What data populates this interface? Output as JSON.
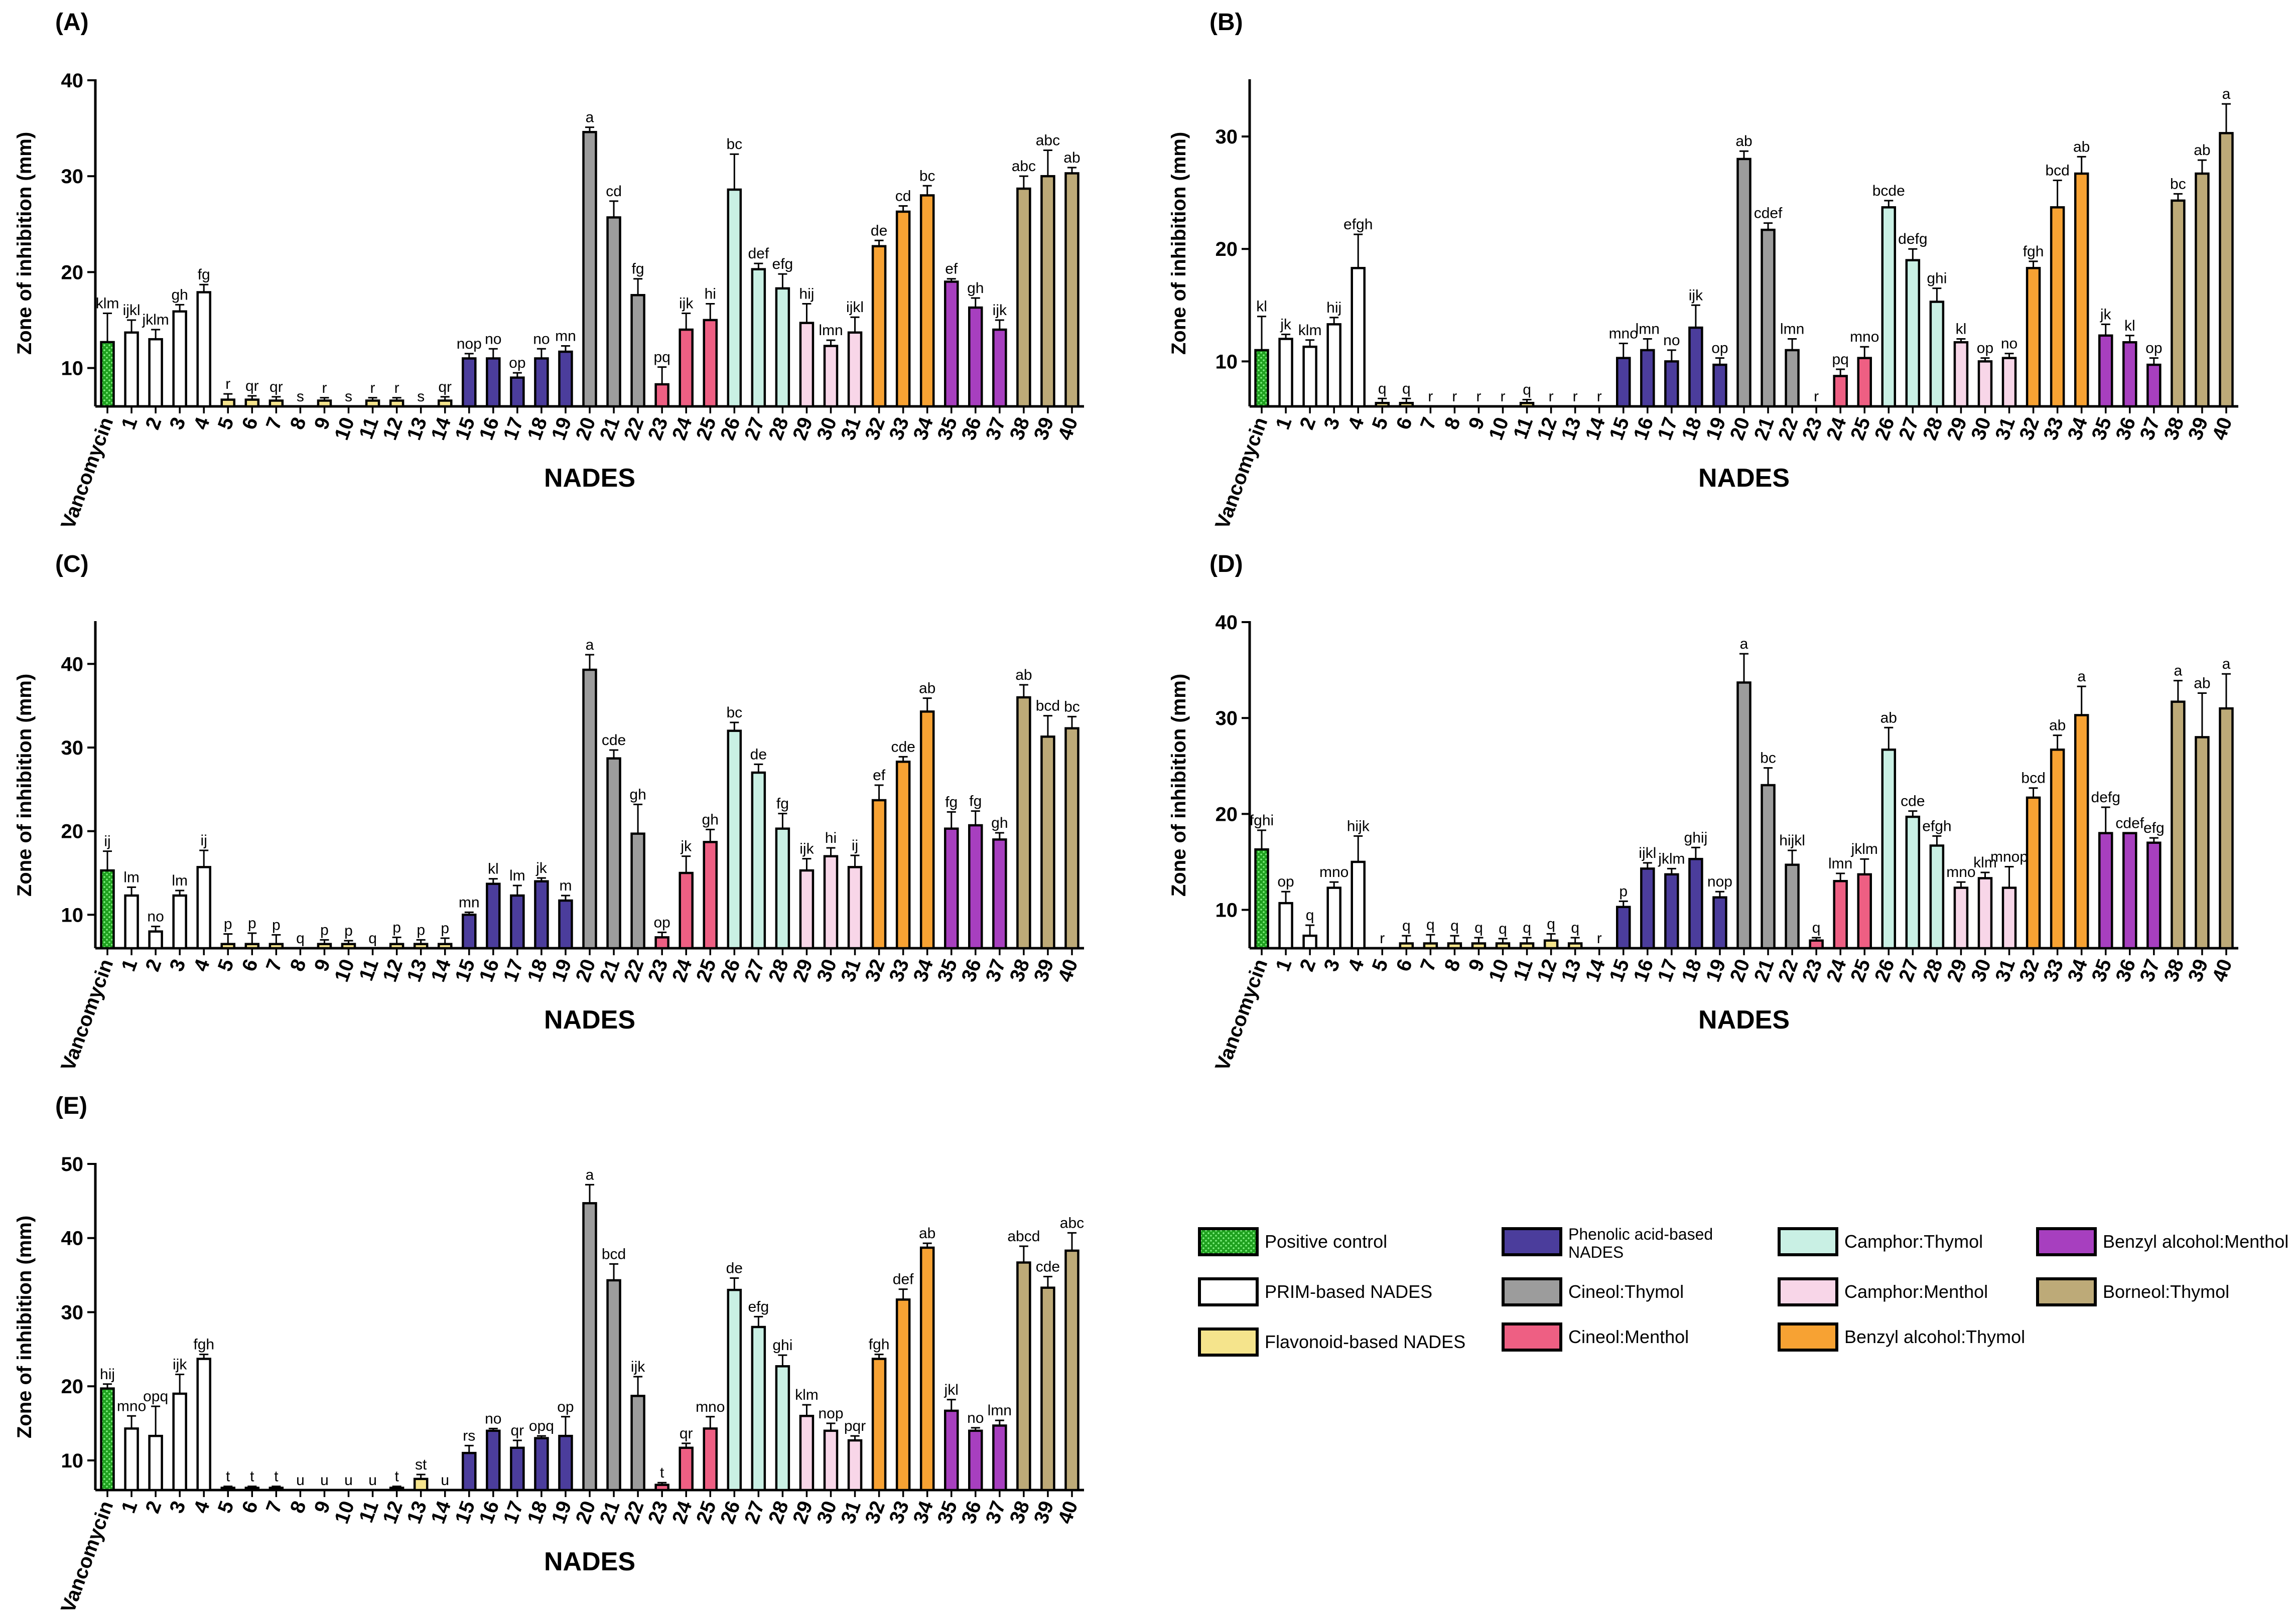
{
  "colors": {
    "positive_control": "#1fa01f",
    "prim": "#ffffff",
    "flavonoid": "#f5e48c",
    "phenolic": "#4b3d9c",
    "cineol_thymol": "#9c9c9c",
    "cineol_menthol": "#ee5f83",
    "camphor_thymol": "#c9f0e4",
    "camphor_menthol": "#f8d6e8",
    "benzyl_thymol": "#f7a233",
    "benzyl_menthol": "#a73fbf",
    "borneol_thymol": "#bdaa78"
  },
  "categories": [
    "Vancomycin",
    "1",
    "2",
    "3",
    "4",
    "5",
    "6",
    "7",
    "8",
    "9",
    "10",
    "11",
    "12",
    "13",
    "14",
    "15",
    "16",
    "17",
    "18",
    "19",
    "20",
    "21",
    "22",
    "23",
    "24",
    "25",
    "26",
    "27",
    "28",
    "29",
    "30",
    "31",
    "32",
    "33",
    "34",
    "35",
    "36",
    "37",
    "38",
    "39",
    "40"
  ],
  "bar_groups": [
    "positive_control",
    "prim",
    "prim",
    "prim",
    "prim",
    "flavonoid",
    "flavonoid",
    "flavonoid",
    "flavonoid",
    "flavonoid",
    "flavonoid",
    "flavonoid",
    "flavonoid",
    "flavonoid",
    "flavonoid",
    "phenolic",
    "phenolic",
    "phenolic",
    "phenolic",
    "phenolic",
    "cineol_thymol",
    "cineol_thymol",
    "cineol_thymol",
    "cineol_menthol",
    "cineol_menthol",
    "cineol_menthol",
    "camphor_thymol",
    "camphor_thymol",
    "camphor_thymol",
    "camphor_menthol",
    "camphor_menthol",
    "camphor_menthol",
    "benzyl_thymol",
    "benzyl_thymol",
    "benzyl_thymol",
    "benzyl_menthol",
    "benzyl_menthol",
    "benzyl_menthol",
    "borneol_thymol",
    "borneol_thymol",
    "borneol_thymol"
  ],
  "chart_data": [
    {
      "panel": "(A)",
      "type": "bar",
      "xlabel": "NADES",
      "ylabel": "Zone of inhibition (mm)",
      "ylim": [
        6,
        40
      ],
      "yticks": [
        10,
        20,
        30,
        40
      ],
      "values": [
        12.7,
        13.7,
        13.0,
        15.9,
        17.9,
        6.7,
        6.7,
        6.6,
        6,
        6.6,
        6,
        6.6,
        6.6,
        6,
        6.6,
        11.0,
        11.0,
        9.0,
        11.0,
        11.7,
        34.6,
        25.7,
        17.6,
        8.3,
        14.0,
        15.0,
        28.6,
        20.3,
        18.3,
        14.7,
        12.3,
        13.7,
        22.7,
        26.3,
        28.0,
        19.0,
        16.3,
        14.0,
        28.7,
        30.0,
        30.3
      ],
      "errors": [
        3.0,
        1.3,
        1.0,
        0.7,
        0.8,
        0.6,
        0.4,
        0.4,
        0,
        0.3,
        0,
        0.3,
        0.3,
        0,
        0.4,
        0.5,
        1.0,
        0.5,
        1.0,
        0.6,
        0.5,
        1.7,
        1.7,
        1.8,
        1.7,
        1.7,
        3.7,
        0.6,
        1.5,
        2.0,
        0.6,
        1.6,
        0.6,
        0.6,
        1.0,
        0.3,
        1.0,
        1.0,
        1.3,
        2.7,
        0.6
      ],
      "letters": [
        "klm",
        "ijkl",
        "jklm",
        "gh",
        "fg",
        "r",
        "qr",
        "qr",
        "s",
        "r",
        "s",
        "r",
        "r",
        "s",
        "qr",
        "nop",
        "no",
        "op",
        "no",
        "mn",
        "a",
        "cd",
        "fg",
        "pq",
        "ijk",
        "hi",
        "bc",
        "def",
        "efg",
        "hij",
        "lmn",
        "ijkl",
        "de",
        "cd",
        "bc",
        "ef",
        "gh",
        "ijk",
        "abc",
        "abc",
        "ab"
      ]
    },
    {
      "panel": "(B)",
      "type": "bar",
      "xlabel": "NADES",
      "ylabel": "Zone of inhibition (mm)",
      "ylim": [
        6,
        35
      ],
      "yticks": [
        10,
        20,
        30
      ],
      "values": [
        11.0,
        12.0,
        11.3,
        13.3,
        18.3,
        6.3,
        6.3,
        6,
        6,
        6,
        6,
        6.3,
        6,
        6,
        6,
        10.3,
        11.0,
        10.0,
        13.0,
        9.7,
        28.0,
        21.7,
        11.0,
        6,
        8.7,
        10.3,
        23.7,
        19.0,
        15.3,
        11.7,
        10.0,
        10.3,
        18.3,
        23.7,
        26.7,
        12.3,
        11.7,
        9.7,
        24.3,
        26.7,
        30.3
      ],
      "errors": [
        3.0,
        0.4,
        0.6,
        0.6,
        3.0,
        0.4,
        0.4,
        0,
        0,
        0,
        0,
        0.3,
        0,
        0,
        0,
        1.3,
        1.0,
        1.0,
        2.0,
        0.6,
        0.7,
        0.6,
        1.0,
        0,
        0.6,
        1.0,
        0.6,
        1.0,
        1.2,
        0.3,
        0.3,
        0.4,
        0.6,
        2.4,
        1.5,
        1.0,
        0.6,
        0.6,
        0.6,
        1.2,
        2.6
      ],
      "letters": [
        "kl",
        "jk",
        "klm",
        "hij",
        "efgh",
        "q",
        "q",
        "r",
        "r",
        "r",
        "r",
        "q",
        "r",
        "r",
        "r",
        "mno",
        "lmn",
        "no",
        "ijk",
        "op",
        "ab",
        "cdef",
        "lmn",
        "r",
        "pq",
        "mno",
        "bcde",
        "defg",
        "ghi",
        "kl",
        "op",
        "no",
        "fgh",
        "bcd",
        "ab",
        "jk",
        "kl",
        "op",
        "bc",
        "ab",
        "a"
      ]
    },
    {
      "panel": "(C)",
      "type": "bar",
      "xlabel": "NADES",
      "ylabel": "Zone of inhibition (mm)",
      "ylim": [
        6,
        45
      ],
      "yticks": [
        10,
        20,
        30,
        40
      ],
      "values": [
        15.3,
        12.3,
        8.0,
        12.3,
        15.7,
        6.5,
        6.5,
        6.5,
        6,
        6.5,
        6.5,
        6,
        6.5,
        6.5,
        6.5,
        10.0,
        13.7,
        12.3,
        14.0,
        11.7,
        39.3,
        28.7,
        19.7,
        7.3,
        15.0,
        18.7,
        32.0,
        27.0,
        20.3,
        15.3,
        17.0,
        15.7,
        23.7,
        28.3,
        34.3,
        20.3,
        20.7,
        19.0,
        36.0,
        31.3,
        32.3
      ],
      "errors": [
        2.3,
        1.0,
        0.6,
        0.6,
        2.0,
        1.2,
        1.3,
        1.1,
        0,
        0.5,
        0.4,
        0,
        0.8,
        0.5,
        0.7,
        0.3,
        0.6,
        1.2,
        0.4,
        0.6,
        1.8,
        1.0,
        3.5,
        0.6,
        2.0,
        1.5,
        1.0,
        1.0,
        1.8,
        1.4,
        1.0,
        1.4,
        1.8,
        0.6,
        1.6,
        2.0,
        1.7,
        0.8,
        1.5,
        2.5,
        1.4
      ],
      "letters": [
        "ij",
        "lm",
        "no",
        "lm",
        "ij",
        "p",
        "p",
        "p",
        "q",
        "p",
        "p",
        "q",
        "p",
        "p",
        "p",
        "mn",
        "kl",
        "lm",
        "jk",
        "m",
        "a",
        "cde",
        "gh",
        "op",
        "jk",
        "gh",
        "bc",
        "de",
        "fg",
        "ijk",
        "hi",
        "ij",
        "ef",
        "cde",
        "ab",
        "fg",
        "fg",
        "gh",
        "ab",
        "bcd",
        "bc"
      ]
    },
    {
      "panel": "(D)",
      "type": "bar",
      "xlabel": "NADES",
      "ylabel": "Zone of inhibition (mm)",
      "ylim": [
        6,
        40
      ],
      "yticks": [
        10,
        20,
        30,
        40
      ],
      "values": [
        16.3,
        10.7,
        7.3,
        12.3,
        15.0,
        6,
        6.5,
        6.5,
        6.5,
        6.5,
        6.5,
        6.5,
        6.8,
        6.5,
        6,
        10.3,
        14.3,
        13.7,
        15.3,
        11.3,
        33.7,
        23.0,
        14.7,
        6.8,
        13.0,
        13.7,
        26.7,
        19.7,
        16.7,
        12.3,
        13.3,
        12.3,
        21.7,
        26.7,
        30.3,
        18.0,
        18.0,
        17.0,
        31.7,
        28.0,
        31.0
      ],
      "errors": [
        2.0,
        1.2,
        1.1,
        0.6,
        2.7,
        0,
        0.8,
        0.9,
        0.8,
        0.6,
        0.5,
        0.6,
        0.7,
        0.6,
        0,
        0.6,
        0.6,
        0.6,
        1.2,
        0.6,
        3.0,
        1.8,
        1.5,
        0.3,
        0.8,
        1.6,
        2.3,
        0.6,
        1.0,
        0.6,
        0.6,
        2.2,
        1.0,
        1.5,
        3.0,
        2.7,
        0,
        0.5,
        2.2,
        4.6,
        3.6
      ],
      "letters": [
        "fghi",
        "op",
        "q",
        "mno",
        "hijk",
        "r",
        "q",
        "q",
        "q",
        "q",
        "q",
        "q",
        "q",
        "q",
        "r",
        "p",
        "ijkl",
        "jklm",
        "ghij",
        "nop",
        "a",
        "bc",
        "hijkl",
        "q",
        "lmn",
        "jklm",
        "ab",
        "cde",
        "efgh",
        "mno",
        "klm",
        "mnop",
        "bcd",
        "ab",
        "a",
        "defg",
        "cdef",
        "efg",
        "a",
        "ab",
        "a"
      ]
    },
    {
      "panel": "(E)",
      "type": "bar",
      "xlabel": "NADES",
      "ylabel": "Zone of inhibition (mm)",
      "ylim": [
        6,
        50
      ],
      "yticks": [
        10,
        20,
        30,
        40,
        50
      ],
      "values": [
        19.7,
        14.3,
        13.3,
        19.0,
        23.7,
        6.3,
        6.3,
        6.3,
        6,
        6,
        6,
        6,
        6.3,
        7.5,
        6,
        11.0,
        14.0,
        11.7,
        13.0,
        13.3,
        44.7,
        34.3,
        18.7,
        6.7,
        11.7,
        14.3,
        33.0,
        28.0,
        22.7,
        16.0,
        14.0,
        12.7,
        23.7,
        31.7,
        38.7,
        16.7,
        14.0,
        14.7,
        36.7,
        33.3,
        38.3
      ],
      "errors": [
        0.6,
        1.7,
        4.0,
        2.6,
        0.6,
        0.2,
        0.2,
        0.2,
        0,
        0,
        0,
        0,
        0.2,
        0.6,
        0,
        1.0,
        0.3,
        1.0,
        0.3,
        2.6,
        2.5,
        2.2,
        2.6,
        0.3,
        0.6,
        1.6,
        1.6,
        1.4,
        1.5,
        1.5,
        1.0,
        0.6,
        0.6,
        1.4,
        0.6,
        1.5,
        0.4,
        0.7,
        2.2,
        1.5,
        2.4
      ],
      "letters": [
        "hij",
        "mno",
        "opq",
        "ijk",
        "fgh",
        "t",
        "t",
        "t",
        "u",
        "u",
        "u",
        "u",
        "t",
        "st",
        "u",
        "rs",
        "no",
        "qr",
        "opq",
        "op",
        "a",
        "bcd",
        "ijk",
        "t",
        "qr",
        "mno",
        "de",
        "efg",
        "ghi",
        "klm",
        "nop",
        "pqr",
        "fgh",
        "def",
        "ab",
        "jkl",
        "no",
        "lmn",
        "abcd",
        "cde",
        "abc"
      ]
    }
  ],
  "legend": [
    {
      "key": "positive_control",
      "label": "Positive control",
      "pattern": true
    },
    {
      "key": "prim",
      "label": "PRIM-based NADES"
    },
    {
      "key": "flavonoid",
      "label": "Flavonoid-based NADES"
    },
    {
      "key": "phenolic",
      "label": "Phenolic acid-based",
      "label2": "NADES"
    },
    {
      "key": "cineol_thymol",
      "label": "Cineol:Thymol"
    },
    {
      "key": "cineol_menthol",
      "label": "Cineol:Menthol"
    },
    {
      "key": "camphor_thymol",
      "label": "Camphor:Thymol"
    },
    {
      "key": "camphor_menthol",
      "label": "Camphor:Menthol"
    },
    {
      "key": "benzyl_thymol",
      "label": "Benzyl alcohol:Thymol"
    },
    {
      "key": "benzyl_menthol",
      "label": "Benzyl alcohol:Menthol"
    },
    {
      "key": "borneol_thymol",
      "label": "Borneol:Thymol"
    }
  ]
}
